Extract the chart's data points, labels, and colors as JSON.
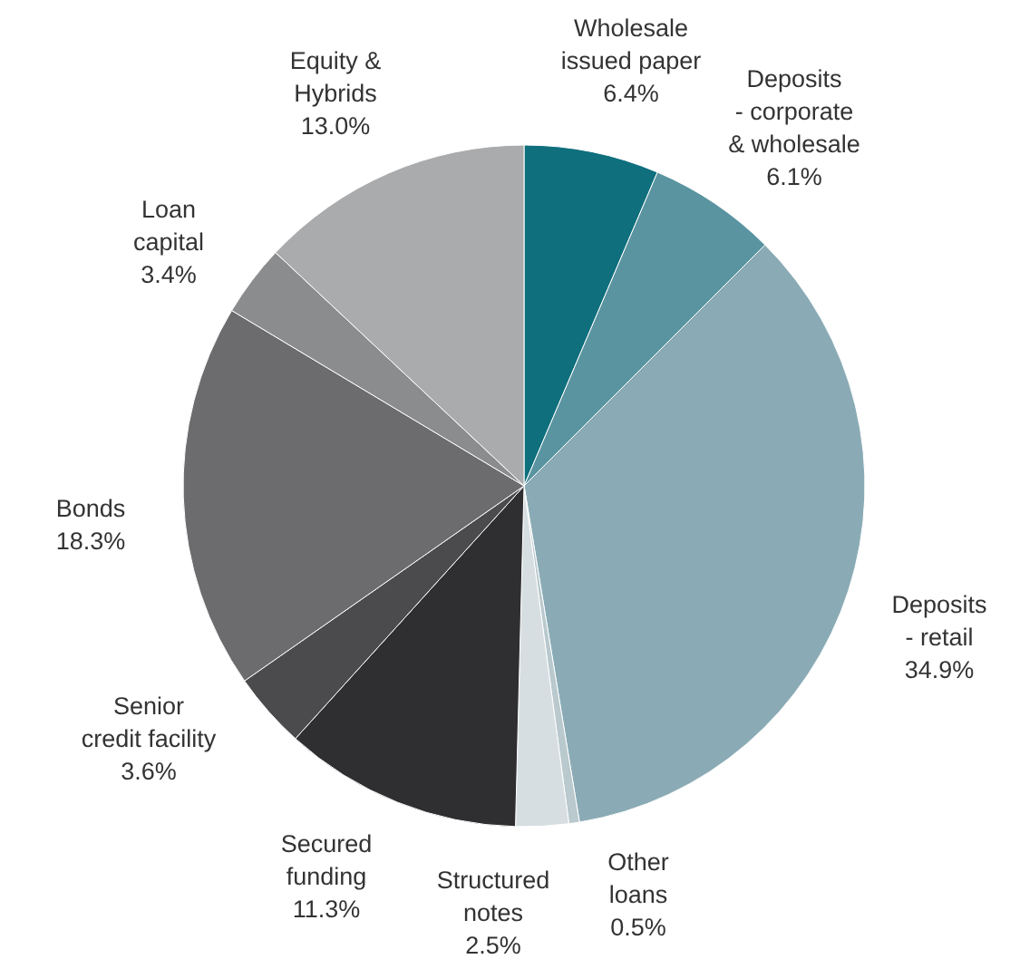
{
  "chart_data": {
    "type": "pie",
    "categories": [
      "Wholesale issued paper",
      "Deposits - corporate & wholesale",
      "Deposits - retail",
      "Other loans",
      "Structured notes",
      "Secured funding",
      "Senior credit facility",
      "Bonds",
      "Loan capital",
      "Equity & Hybrids"
    ],
    "values": [
      6.4,
      6.1,
      34.9,
      0.5,
      2.5,
      11.3,
      3.6,
      18.3,
      3.4,
      13.0
    ],
    "value_labels": [
      "6.4%",
      "6.1%",
      "34.9%",
      "0.5%",
      "2.5%",
      "11.3%",
      "3.6%",
      "18.3%",
      "3.4%",
      "13.0%"
    ],
    "colors": [
      "#0f6f7d",
      "#5a94a0",
      "#8aabb5",
      "#b9c9cd",
      "#d6dee1",
      "#2f2f31",
      "#4b4b4d",
      "#6c6c6e",
      "#8b8c8e",
      "#aaabad"
    ]
  }
}
